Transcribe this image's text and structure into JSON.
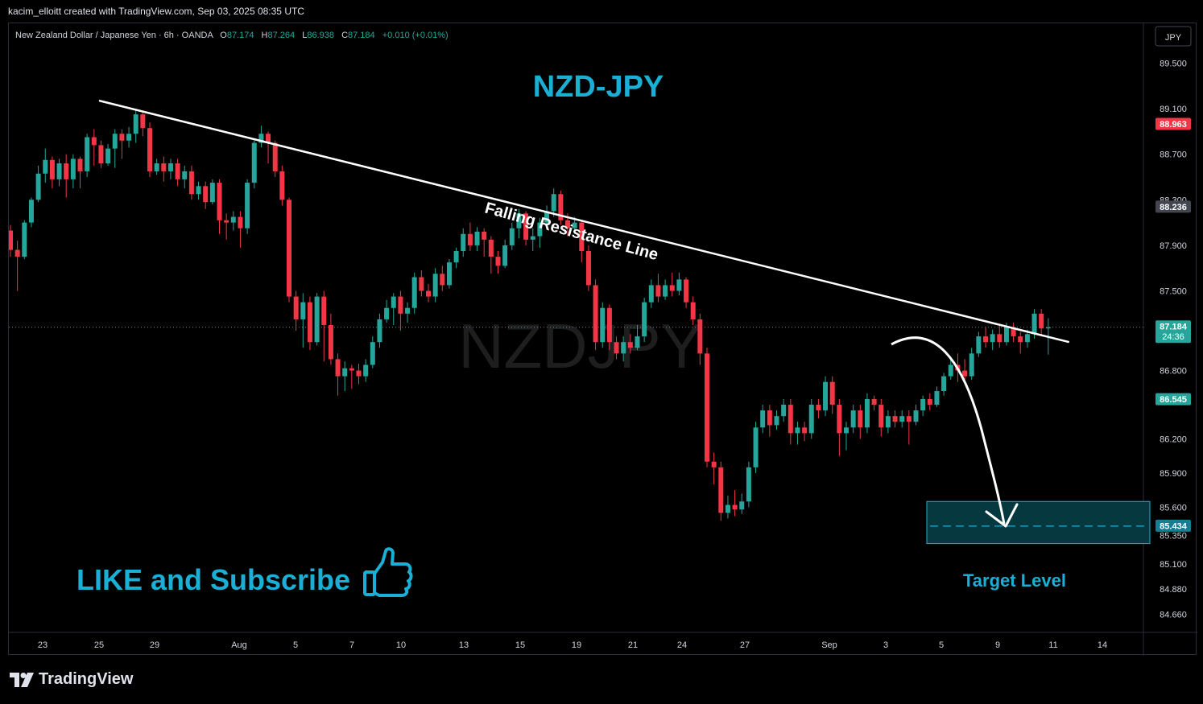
{
  "header": {
    "credit": "kacim_elloitt created with TradingView.com, Sep 03, 2025 08:35 UTC",
    "symbol": "New Zealand Dollar / Japanese Yen · 6h · OANDA",
    "o_label": "O",
    "o": "87.174",
    "h_label": "H",
    "h": "87.264",
    "l_label": "L",
    "l": "86.938",
    "c_label": "C",
    "c": "87.184",
    "change": "+0.010 (+0.01%)",
    "currency_button": "JPY"
  },
  "annotations": {
    "title": "NZD-JPY",
    "watermark": "NZDJPY",
    "resistance_label": "Falling Resistance Line",
    "like_text": "LIKE and Subscribe",
    "target_label": "Target Level"
  },
  "price_badges": {
    "high": "88.963",
    "mid": "88.236",
    "last": "87.184",
    "countdown": "24:36",
    "low": "86.545",
    "target": "85.434"
  },
  "footer": {
    "brand": "TradingView"
  },
  "colors": {
    "up": "#26a69a",
    "down": "#f23645",
    "accent": "#1ab0d6",
    "background": "#000000"
  },
  "chart_data": {
    "type": "candlestick",
    "ylim": [
      84.5,
      89.85
    ],
    "y_ticks": [
      "89.500",
      "89.100",
      "88.700",
      "88.300",
      "87.900",
      "87.500",
      "86.800",
      "86.200",
      "85.900",
      "85.600",
      "85.350",
      "85.100",
      "84.880",
      "84.660"
    ],
    "x_ticks": [
      "23",
      "25",
      "29",
      "Aug",
      "5",
      "7",
      "10",
      "13",
      "15",
      "19",
      "21",
      "24",
      "27",
      "Sep",
      "3",
      "5",
      "9",
      "11",
      "14"
    ],
    "resistance_line": [
      [
        0,
        89.15
      ],
      [
        152,
        87.05
      ]
    ],
    "target_zone": [
      85.28,
      85.65
    ],
    "target_price": 85.434,
    "candles": [
      [
        88.03,
        87.86,
        88.08,
        87.8
      ],
      [
        87.86,
        87.8,
        87.94,
        87.5
      ],
      [
        87.8,
        88.1,
        88.12,
        87.78
      ],
      [
        88.1,
        88.3,
        88.32,
        88.06
      ],
      [
        88.3,
        88.53,
        88.6,
        88.28
      ],
      [
        88.53,
        88.65,
        88.75,
        88.45
      ],
      [
        88.65,
        88.48,
        88.68,
        88.4
      ],
      [
        88.48,
        88.62,
        88.66,
        88.42
      ],
      [
        88.62,
        88.48,
        88.7,
        88.32
      ],
      [
        88.48,
        88.66,
        88.7,
        88.4
      ],
      [
        88.66,
        88.55,
        88.68,
        88.4
      ],
      [
        88.55,
        88.85,
        88.88,
        88.5
      ],
      [
        88.85,
        88.78,
        88.92,
        88.6
      ],
      [
        88.78,
        88.62,
        88.82,
        88.58
      ],
      [
        88.62,
        88.75,
        88.79,
        88.6
      ],
      [
        88.75,
        88.88,
        88.92,
        88.58
      ],
      [
        88.88,
        88.82,
        88.92,
        88.66
      ],
      [
        88.82,
        88.88,
        88.94,
        88.76
      ],
      [
        88.88,
        89.05,
        89.1,
        88.8
      ],
      [
        89.05,
        88.93,
        89.08,
        88.86
      ],
      [
        88.93,
        88.55,
        88.98,
        88.5
      ],
      [
        88.55,
        88.62,
        88.66,
        88.52
      ],
      [
        88.62,
        88.55,
        88.68,
        88.46
      ],
      [
        88.55,
        88.62,
        88.66,
        88.48
      ],
      [
        88.62,
        88.48,
        88.66,
        88.42
      ],
      [
        88.48,
        88.55,
        88.6,
        88.4
      ],
      [
        88.55,
        88.35,
        88.6,
        88.3
      ],
      [
        88.35,
        88.42,
        88.46,
        88.3
      ],
      [
        88.42,
        88.28,
        88.46,
        88.22
      ],
      [
        88.28,
        88.45,
        88.48,
        88.26
      ],
      [
        88.45,
        88.12,
        88.48,
        88.0
      ],
      [
        88.12,
        88.1,
        88.18,
        87.95
      ],
      [
        88.1,
        88.15,
        88.2,
        88.03
      ],
      [
        88.15,
        88.05,
        88.2,
        87.88
      ],
      [
        88.05,
        88.45,
        88.48,
        88.0
      ],
      [
        88.45,
        88.8,
        88.82,
        88.4
      ],
      [
        88.8,
        88.88,
        88.95,
        88.76
      ],
      [
        88.88,
        88.8,
        88.9,
        88.62
      ],
      [
        88.8,
        88.55,
        88.82,
        88.5
      ],
      [
        88.55,
        88.3,
        88.6,
        88.25
      ],
      [
        88.3,
        87.45,
        88.32,
        87.4
      ],
      [
        87.45,
        87.25,
        87.5,
        87.15
      ],
      [
        87.25,
        87.4,
        87.48,
        87.0
      ],
      [
        87.4,
        87.05,
        87.45,
        86.98
      ],
      [
        87.05,
        87.45,
        87.48,
        87.02
      ],
      [
        87.45,
        87.2,
        87.5,
        86.88
      ],
      [
        87.2,
        86.9,
        87.3,
        86.85
      ],
      [
        86.9,
        86.75,
        86.95,
        86.58
      ],
      [
        86.75,
        86.82,
        86.88,
        86.62
      ],
      [
        86.82,
        86.8,
        86.85,
        86.64
      ],
      [
        86.8,
        86.75,
        86.86,
        86.68
      ],
      [
        86.75,
        86.85,
        86.9,
        86.7
      ],
      [
        86.85,
        87.05,
        87.1,
        86.82
      ],
      [
        87.05,
        87.25,
        87.3,
        87.0
      ],
      [
        87.25,
        87.35,
        87.42,
        87.22
      ],
      [
        87.35,
        87.45,
        87.48,
        87.2
      ],
      [
        87.45,
        87.3,
        87.5,
        87.15
      ],
      [
        87.3,
        87.35,
        87.4,
        87.22
      ],
      [
        87.35,
        87.62,
        87.66,
        87.3
      ],
      [
        87.62,
        87.5,
        87.68,
        87.45
      ],
      [
        87.5,
        87.45,
        87.56,
        87.4
      ],
      [
        87.45,
        87.65,
        87.7,
        87.4
      ],
      [
        87.65,
        87.55,
        87.72,
        87.5
      ],
      [
        87.55,
        87.75,
        87.78,
        87.52
      ],
      [
        87.75,
        87.85,
        87.88,
        87.7
      ],
      [
        87.85,
        88.0,
        88.05,
        87.8
      ],
      [
        88.0,
        87.9,
        88.1,
        87.85
      ],
      [
        87.9,
        88.02,
        88.06,
        87.85
      ],
      [
        88.02,
        87.95,
        88.05,
        87.8
      ],
      [
        87.95,
        87.8,
        87.98,
        87.65
      ],
      [
        87.8,
        87.72,
        87.85,
        87.65
      ],
      [
        87.72,
        87.9,
        87.95,
        87.7
      ],
      [
        87.9,
        88.05,
        88.1,
        87.86
      ],
      [
        88.05,
        88.18,
        88.22,
        87.96
      ],
      [
        88.18,
        87.95,
        88.2,
        87.9
      ],
      [
        87.95,
        87.98,
        88.05,
        87.85
      ],
      [
        87.98,
        88.1,
        88.14,
        87.88
      ],
      [
        88.1,
        88.2,
        88.25,
        88.04
      ],
      [
        88.2,
        88.35,
        88.4,
        88.15
      ],
      [
        88.35,
        88.12,
        88.38,
        88.08
      ],
      [
        88.12,
        88.05,
        88.18,
        87.98
      ],
      [
        88.05,
        88.1,
        88.15,
        88.0
      ],
      [
        88.1,
        87.85,
        88.12,
        87.75
      ],
      [
        87.85,
        87.55,
        87.9,
        87.5
      ],
      [
        87.55,
        87.05,
        87.6,
        86.98
      ],
      [
        87.05,
        87.35,
        87.4,
        87.0
      ],
      [
        87.35,
        87.05,
        87.38,
        86.98
      ],
      [
        87.05,
        86.95,
        87.1,
        86.9
      ],
      [
        86.95,
        87.05,
        87.1,
        86.88
      ],
      [
        87.05,
        87.0,
        87.12,
        86.95
      ],
      [
        87.0,
        87.1,
        87.2,
        86.98
      ],
      [
        87.1,
        87.4,
        87.44,
        87.05
      ],
      [
        87.4,
        87.55,
        87.6,
        87.35
      ],
      [
        87.55,
        87.45,
        87.65,
        87.4
      ],
      [
        87.45,
        87.55,
        87.6,
        87.42
      ],
      [
        87.55,
        87.5,
        87.66,
        87.45
      ],
      [
        87.5,
        87.6,
        87.66,
        87.46
      ],
      [
        87.6,
        87.4,
        87.62,
        87.35
      ],
      [
        87.4,
        87.25,
        87.45,
        87.2
      ],
      [
        87.25,
        86.95,
        87.3,
        86.85
      ],
      [
        86.95,
        86.0,
        87.0,
        85.95
      ],
      [
        86.0,
        85.95,
        86.08,
        85.8
      ],
      [
        85.95,
        85.55,
        86.0,
        85.48
      ],
      [
        85.55,
        85.62,
        85.7,
        85.5
      ],
      [
        85.62,
        85.58,
        85.75,
        85.52
      ],
      [
        85.58,
        85.65,
        85.72,
        85.54
      ],
      [
        85.65,
        85.95,
        86.0,
        85.6
      ],
      [
        85.95,
        86.3,
        86.35,
        85.9
      ],
      [
        86.3,
        86.45,
        86.5,
        86.25
      ],
      [
        86.45,
        86.32,
        86.5,
        86.22
      ],
      [
        86.32,
        86.4,
        86.45,
        86.28
      ],
      [
        86.4,
        86.5,
        86.55,
        86.35
      ],
      [
        86.5,
        86.25,
        86.55,
        86.15
      ],
      [
        86.25,
        86.3,
        86.35,
        86.15
      ],
      [
        86.3,
        86.25,
        86.35,
        86.18
      ],
      [
        86.25,
        86.5,
        86.55,
        86.2
      ],
      [
        86.5,
        86.45,
        86.55,
        86.38
      ],
      [
        86.45,
        86.7,
        86.75,
        86.4
      ],
      [
        86.7,
        86.5,
        86.75,
        86.42
      ],
      [
        86.5,
        86.25,
        86.55,
        86.05
      ],
      [
        86.25,
        86.3,
        86.35,
        86.1
      ],
      [
        86.3,
        86.45,
        86.5,
        86.25
      ],
      [
        86.45,
        86.3,
        86.5,
        86.2
      ],
      [
        86.3,
        86.55,
        86.6,
        86.25
      ],
      [
        86.55,
        86.5,
        86.58,
        86.45
      ],
      [
        86.5,
        86.3,
        86.55,
        86.22
      ],
      [
        86.3,
        86.4,
        86.45,
        86.25
      ],
      [
        86.4,
        86.35,
        86.45,
        86.3
      ],
      [
        86.35,
        86.4,
        86.45,
        86.3
      ],
      [
        86.4,
        86.35,
        86.45,
        86.15
      ],
      [
        86.35,
        86.45,
        86.5,
        86.32
      ],
      [
        86.45,
        86.55,
        86.58,
        86.4
      ],
      [
        86.55,
        86.5,
        86.6,
        86.45
      ],
      [
        86.5,
        86.62,
        86.66,
        86.48
      ],
      [
        86.62,
        86.75,
        86.78,
        86.58
      ],
      [
        86.75,
        86.85,
        86.92,
        86.72
      ],
      [
        86.85,
        86.8,
        86.95,
        86.7
      ],
      [
        86.8,
        86.75,
        86.9,
        86.7
      ],
      [
        86.75,
        86.95,
        87.0,
        86.72
      ],
      [
        86.95,
        87.1,
        87.14,
        86.92
      ],
      [
        87.1,
        87.05,
        87.18,
        87.0
      ],
      [
        87.05,
        87.12,
        87.16,
        86.98
      ],
      [
        87.12,
        87.05,
        87.2,
        87.0
      ],
      [
        87.05,
        87.18,
        87.22,
        87.02
      ],
      [
        87.18,
        87.1,
        87.22,
        87.05
      ],
      [
        87.1,
        87.05,
        87.14,
        86.95
      ],
      [
        87.05,
        87.12,
        87.16,
        87.0
      ],
      [
        87.12,
        87.3,
        87.34,
        87.08
      ],
      [
        87.3,
        87.17,
        87.34,
        87.1
      ],
      [
        87.17,
        87.18,
        87.26,
        86.94
      ]
    ]
  }
}
